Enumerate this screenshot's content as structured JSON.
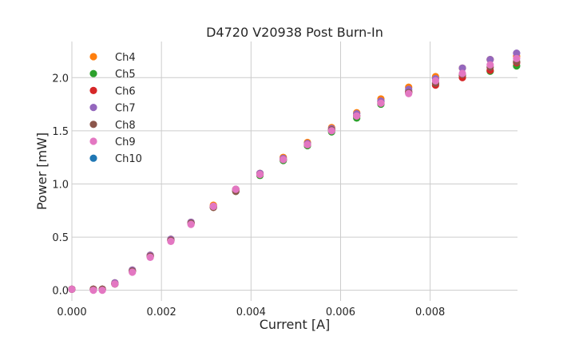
{
  "chart_data": {
    "type": "scatter",
    "title": "D4720 V20938 Post Burn-In",
    "xlabel": "Current [A]",
    "ylabel": "Power [mW]",
    "xlim": [
      0,
      0.00995
    ],
    "ylim": [
      -0.1,
      2.34
    ],
    "grid": true,
    "legend_position": "top-left",
    "x_ticks": [
      {
        "value": 0,
        "label": "0.000"
      },
      {
        "value": 0.002,
        "label": "0.002"
      },
      {
        "value": 0.004,
        "label": "0.004"
      },
      {
        "value": 0.006,
        "label": "0.006"
      },
      {
        "value": 0.008,
        "label": "0.008"
      }
    ],
    "y_ticks": [
      {
        "value": 0,
        "label": "0.0"
      },
      {
        "value": 0.5,
        "label": "0.5"
      },
      {
        "value": 1.0,
        "label": "1.0"
      },
      {
        "value": 1.5,
        "label": "1.5"
      },
      {
        "value": 2.0,
        "label": "2.0"
      }
    ],
    "x": [
      0.0,
      0.00048,
      0.00068,
      0.00096,
      0.00135,
      0.00175,
      0.00221,
      0.00266,
      0.00316,
      0.00366,
      0.0042,
      0.00472,
      0.00526,
      0.0058,
      0.00636,
      0.0069,
      0.00752,
      0.00812,
      0.00872,
      0.00934,
      0.00993
    ],
    "series": [
      {
        "name": "Ch4",
        "color": "#ff7f0e",
        "values": [
          0.01,
          0.01,
          0.01,
          0.07,
          0.19,
          0.33,
          0.48,
          0.64,
          0.8,
          0.95,
          1.1,
          1.25,
          1.39,
          1.53,
          1.67,
          1.8,
          1.91,
          2.01,
          2.09,
          2.17,
          2.2
        ]
      },
      {
        "name": "Ch5",
        "color": "#2ca02c",
        "values": [
          0.01,
          0.01,
          0.01,
          0.06,
          0.18,
          0.32,
          0.47,
          0.63,
          0.78,
          0.93,
          1.08,
          1.22,
          1.36,
          1.49,
          1.62,
          1.75,
          1.86,
          1.95,
          2.02,
          2.06,
          2.11
        ]
      },
      {
        "name": "Ch6",
        "color": "#d62728",
        "values": [
          0.01,
          0.01,
          0.01,
          0.06,
          0.18,
          0.32,
          0.47,
          0.63,
          0.78,
          0.94,
          1.09,
          1.23,
          1.37,
          1.51,
          1.64,
          1.77,
          1.87,
          1.93,
          2.0,
          2.07,
          2.14
        ]
      },
      {
        "name": "Ch7",
        "color": "#9467bd",
        "values": [
          0.01,
          0.01,
          0.01,
          0.07,
          0.19,
          0.33,
          0.48,
          0.64,
          0.79,
          0.95,
          1.1,
          1.24,
          1.38,
          1.52,
          1.66,
          1.78,
          1.89,
          1.99,
          2.09,
          2.17,
          2.23
        ]
      },
      {
        "name": "Ch8",
        "color": "#8c564b",
        "values": [
          0.01,
          0.01,
          0.01,
          0.06,
          0.18,
          0.32,
          0.47,
          0.63,
          0.78,
          0.93,
          1.09,
          1.23,
          1.37,
          1.51,
          1.64,
          1.76,
          1.86,
          1.95,
          2.03,
          2.1,
          2.15
        ]
      },
      {
        "name": "Ch9",
        "color": "#e377c2",
        "values": [
          0.01,
          0.0,
          0.0,
          0.06,
          0.17,
          0.31,
          0.46,
          0.62,
          0.79,
          0.95,
          1.09,
          1.23,
          1.37,
          1.5,
          1.64,
          1.76,
          1.85,
          1.97,
          2.04,
          2.12,
          2.18
        ]
      },
      {
        "name": "Ch10",
        "color": "#1f77b4",
        "values": []
      }
    ]
  }
}
